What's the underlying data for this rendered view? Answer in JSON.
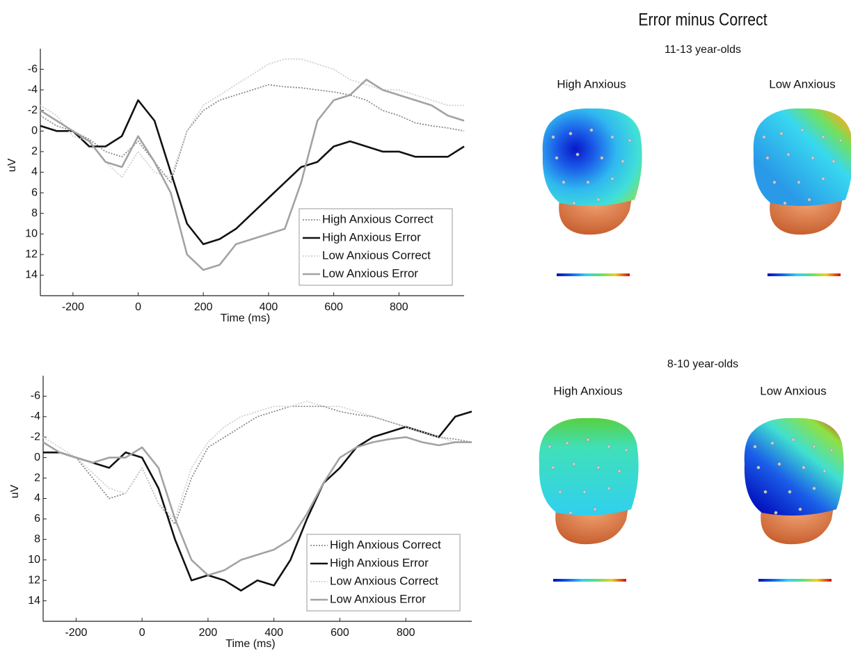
{
  "chart_data": [
    {
      "type": "line",
      "xlabel": "Time (ms)",
      "ylabel": "uV",
      "x": [
        -300,
        -250,
        -200,
        -150,
        -100,
        -50,
        0,
        50,
        100,
        150,
        200,
        250,
        300,
        350,
        400,
        450,
        500,
        550,
        600,
        650,
        700,
        750,
        800,
        850,
        900,
        950,
        1000
      ],
      "xlim": [
        -300,
        1000
      ],
      "xticks": [
        -200,
        0,
        200,
        400,
        600,
        800
      ],
      "ylim": [
        -8,
        16
      ],
      "y_inverted": true,
      "yticks": [
        -6,
        -4,
        -2,
        0,
        2,
        4,
        6,
        8,
        10,
        12,
        14
      ],
      "legend": "lower right",
      "series": [
        {
          "name": "High Anxious Correct",
          "color": "#8a8a8a",
          "line_style": "dotted",
          "values": [
            -1.5,
            -0.5,
            0,
            0.8,
            2,
            2.5,
            1,
            3,
            5,
            0,
            -2,
            -3,
            -3.5,
            -4,
            -4.5,
            -4.3,
            -4.2,
            -4,
            -3.8,
            -3.5,
            -3,
            -2,
            -1.5,
            -0.8,
            -0.5,
            -0.3,
            0
          ]
        },
        {
          "name": "High Anxious Error",
          "color": "#111111",
          "line_style": "solid",
          "values": [
            -0.5,
            0,
            0,
            1.5,
            1.5,
            0.5,
            -3,
            -1,
            4,
            9,
            11,
            10.5,
            9.5,
            8,
            6.5,
            5,
            3.5,
            3,
            1.5,
            1,
            1.5,
            2,
            2,
            2.5,
            2.5,
            2.5,
            1.5
          ]
        },
        {
          "name": "Low Anxious Correct",
          "color": "#cfcfcf",
          "line_style": "dotted",
          "values": [
            -2.5,
            -1.5,
            0.5,
            1,
            3,
            4.5,
            2,
            4,
            4.5,
            0,
            -2.5,
            -3.5,
            -4.5,
            -5.5,
            -6.5,
            -7,
            -7,
            -6.5,
            -6,
            -5,
            -4.5,
            -4,
            -4,
            -3.5,
            -3,
            -2.5,
            -2.5
          ]
        },
        {
          "name": "Low Anxious Error",
          "color": "#a2a2a2",
          "line_style": "solid",
          "values": [
            -2,
            -1,
            0,
            1,
            3,
            3.5,
            0.5,
            3,
            6,
            12,
            13.5,
            13,
            11,
            10.5,
            10,
            9.5,
            5,
            -1,
            -3,
            -3.5,
            -5,
            -4,
            -3.5,
            -3,
            -2.5,
            -1.5,
            -1
          ]
        }
      ]
    },
    {
      "type": "line",
      "xlabel": "Time (ms)",
      "ylabel": "uV",
      "x": [
        -300,
        -250,
        -200,
        -150,
        -100,
        -50,
        0,
        50,
        100,
        150,
        200,
        250,
        300,
        350,
        400,
        450,
        500,
        550,
        600,
        650,
        700,
        750,
        800,
        850,
        900,
        950,
        1000
      ],
      "xlim": [
        -300,
        1000
      ],
      "xticks": [
        -200,
        0,
        200,
        400,
        600,
        800
      ],
      "ylim": [
        -8,
        16
      ],
      "y_inverted": true,
      "yticks": [
        -6,
        -4,
        -2,
        0,
        2,
        4,
        6,
        8,
        10,
        12,
        14
      ],
      "legend": "lower right",
      "series": [
        {
          "name": "High Anxious Correct",
          "color": "#8a8a8a",
          "line_style": "dotted",
          "values": [
            -1.5,
            -0.5,
            0,
            2,
            4,
            3.5,
            1,
            4.5,
            6.5,
            2,
            -1,
            -2,
            -3,
            -4,
            -4.5,
            -5,
            -5,
            -5,
            -4.5,
            -4.2,
            -4,
            -3.5,
            -3,
            -2.5,
            -2,
            -1.8,
            -1.5
          ]
        },
        {
          "name": "High Anxious Error",
          "color": "#111111",
          "line_style": "solid",
          "values": [
            -0.5,
            -0.5,
            0,
            0.5,
            1,
            -0.5,
            0,
            3,
            8,
            12,
            11.5,
            12,
            13,
            12,
            12.5,
            10,
            6,
            2.5,
            1,
            -1,
            -2,
            -2.5,
            -3,
            -2.5,
            -2,
            -4,
            -4.5
          ]
        },
        {
          "name": "Low Anxious Correct",
          "color": "#cfcfcf",
          "line_style": "dotted",
          "values": [
            -2,
            -1,
            0,
            1.5,
            3,
            3.5,
            1,
            4.5,
            6,
            1,
            -1.5,
            -3,
            -4,
            -4.5,
            -5,
            -5,
            -5.5,
            -5,
            -5,
            -4.5,
            -4,
            -3.5,
            -3,
            -2.5,
            -2,
            -1.5,
            -1.5
          ]
        },
        {
          "name": "Low Anxious Error",
          "color": "#a2a2a2",
          "line_style": "solid",
          "values": [
            -1.5,
            -0.5,
            0,
            0.5,
            0,
            0,
            -1,
            1,
            6,
            10,
            11.5,
            11,
            10,
            9.5,
            9,
            8,
            5.5,
            2.5,
            0,
            -1,
            -1.5,
            -1.8,
            -2,
            -1.5,
            -1.2,
            -1.5,
            -1.5
          ]
        }
      ]
    }
  ],
  "topomaps": {
    "title": "Error minus Correct",
    "groups": [
      {
        "label": "11-13 year-olds",
        "maps": [
          "High Anxious",
          "Low Anxious"
        ]
      },
      {
        "label": "8-10 year-olds",
        "maps": [
          "High Anxious",
          "Low Anxious"
        ]
      }
    ]
  }
}
